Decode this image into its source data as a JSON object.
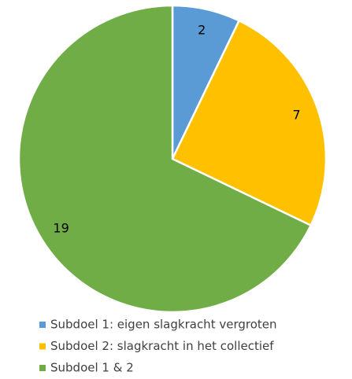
{
  "chart_data": {
    "type": "pie",
    "categories": [
      "Subdoel 1: eigen slagkracht vergroten",
      "Subdoel 2: slagkracht in het collectief",
      "Subdoel 1 & 2"
    ],
    "values": [
      2,
      7,
      19
    ],
    "colors": [
      "#5b9bd5",
      "#ffc000",
      "#70ad47"
    ]
  }
}
